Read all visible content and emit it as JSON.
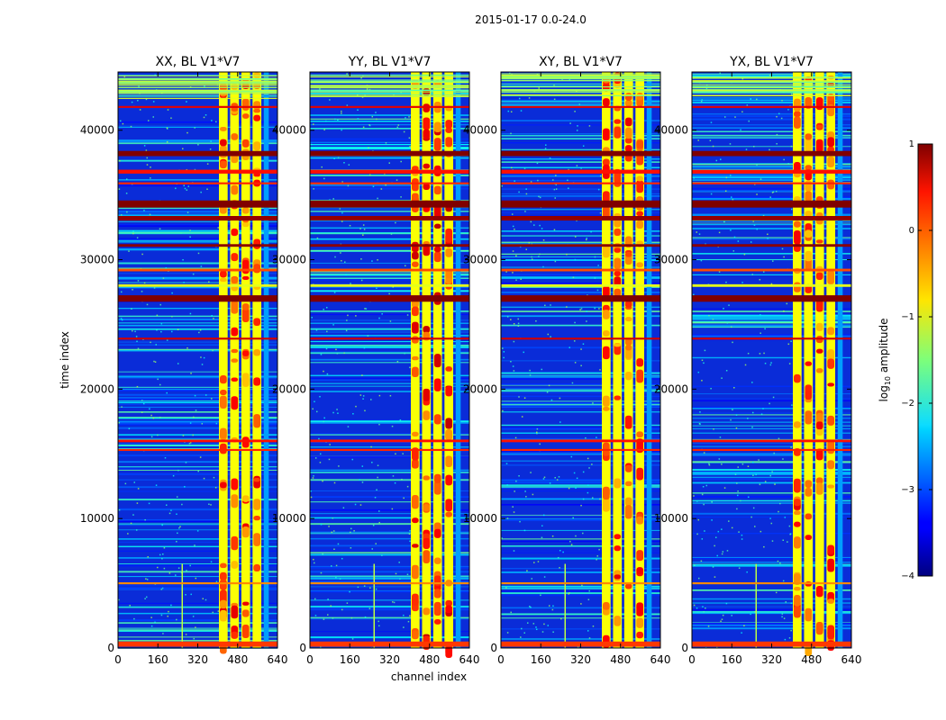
{
  "suptitle": "2015-01-17 0.0-24.0",
  "colors": {
    "background_blue": "#0a2cd8",
    "frame": "#000000"
  },
  "chart_data": {
    "type": "heatmap",
    "title": "2015-01-17 0.0-24.0",
    "xlabel": "channel index",
    "ylabel": "time index",
    "xlim": [
      0,
      640
    ],
    "ylim": [
      0,
      44500
    ],
    "x_ticks": [
      0,
      160,
      320,
      480,
      640
    ],
    "y_ticks": [
      0,
      10000,
      20000,
      30000,
      40000
    ],
    "x_tick_labels": [
      "0",
      "160",
      "320",
      "480",
      "640"
    ],
    "y_tick_labels": [
      "0",
      "10000",
      "20000",
      "30000",
      "40000"
    ],
    "panels": [
      {
        "name": "XX",
        "title": "XX, BL V1*V7"
      },
      {
        "name": "YY",
        "title": "YY, BL V1*V7"
      },
      {
        "name": "XY",
        "title": "XY, BL V1*V7"
      },
      {
        "name": "YX",
        "title": "YX, BL V1*V7"
      }
    ],
    "colorbar": {
      "label": "log10 amplitude",
      "label_prefix": "log",
      "label_sub": "10",
      "label_suffix": " amplitude",
      "range": [
        -4,
        1
      ],
      "colormap": "jet",
      "ticks": [
        1,
        0,
        -1,
        -2,
        -3,
        -4
      ],
      "tick_labels": [
        "1",
        "0",
        "−1",
        "−2",
        "−3",
        "−4"
      ]
    },
    "features": {
      "vertical_bands_channels": [
        [
          405,
          440
        ],
        [
          450,
          485
        ],
        [
          495,
          530
        ],
        [
          540,
          575
        ]
      ],
      "band_gap_channels": [
        [
          585,
          605
        ]
      ],
      "rfi_spike_channel": 255,
      "strong_rfi_rows": [
        {
          "t": 27000,
          "value": 1.0,
          "thickness": 500
        },
        {
          "t": 31100,
          "value": 0.95,
          "thickness": 200
        },
        {
          "t": 33200,
          "value": 0.9,
          "thickness": 350
        },
        {
          "t": 34300,
          "value": 1.0,
          "thickness": 550
        },
        {
          "t": 38200,
          "value": 1.0,
          "thickness": 400
        },
        {
          "t": 36800,
          "value": 0.3,
          "thickness": 300
        },
        {
          "t": 35900,
          "value": 0.2,
          "thickness": 150
        },
        {
          "t": 41800,
          "value": 0.5,
          "thickness": 150
        },
        {
          "t": 23900,
          "value": 0.6,
          "thickness": 150
        },
        {
          "t": 16000,
          "value": 0.3,
          "thickness": 200
        },
        {
          "t": 15300,
          "value": 0.2,
          "thickness": 150
        },
        {
          "t": 29200,
          "value": 0.0,
          "thickness": 200
        },
        {
          "t": 28000,
          "value": -1.0,
          "thickness": 200
        },
        {
          "t": 5000,
          "value": -0.3,
          "thickness": 150
        },
        {
          "t": 300,
          "value": 0.1,
          "thickness": 400
        }
      ]
    }
  }
}
